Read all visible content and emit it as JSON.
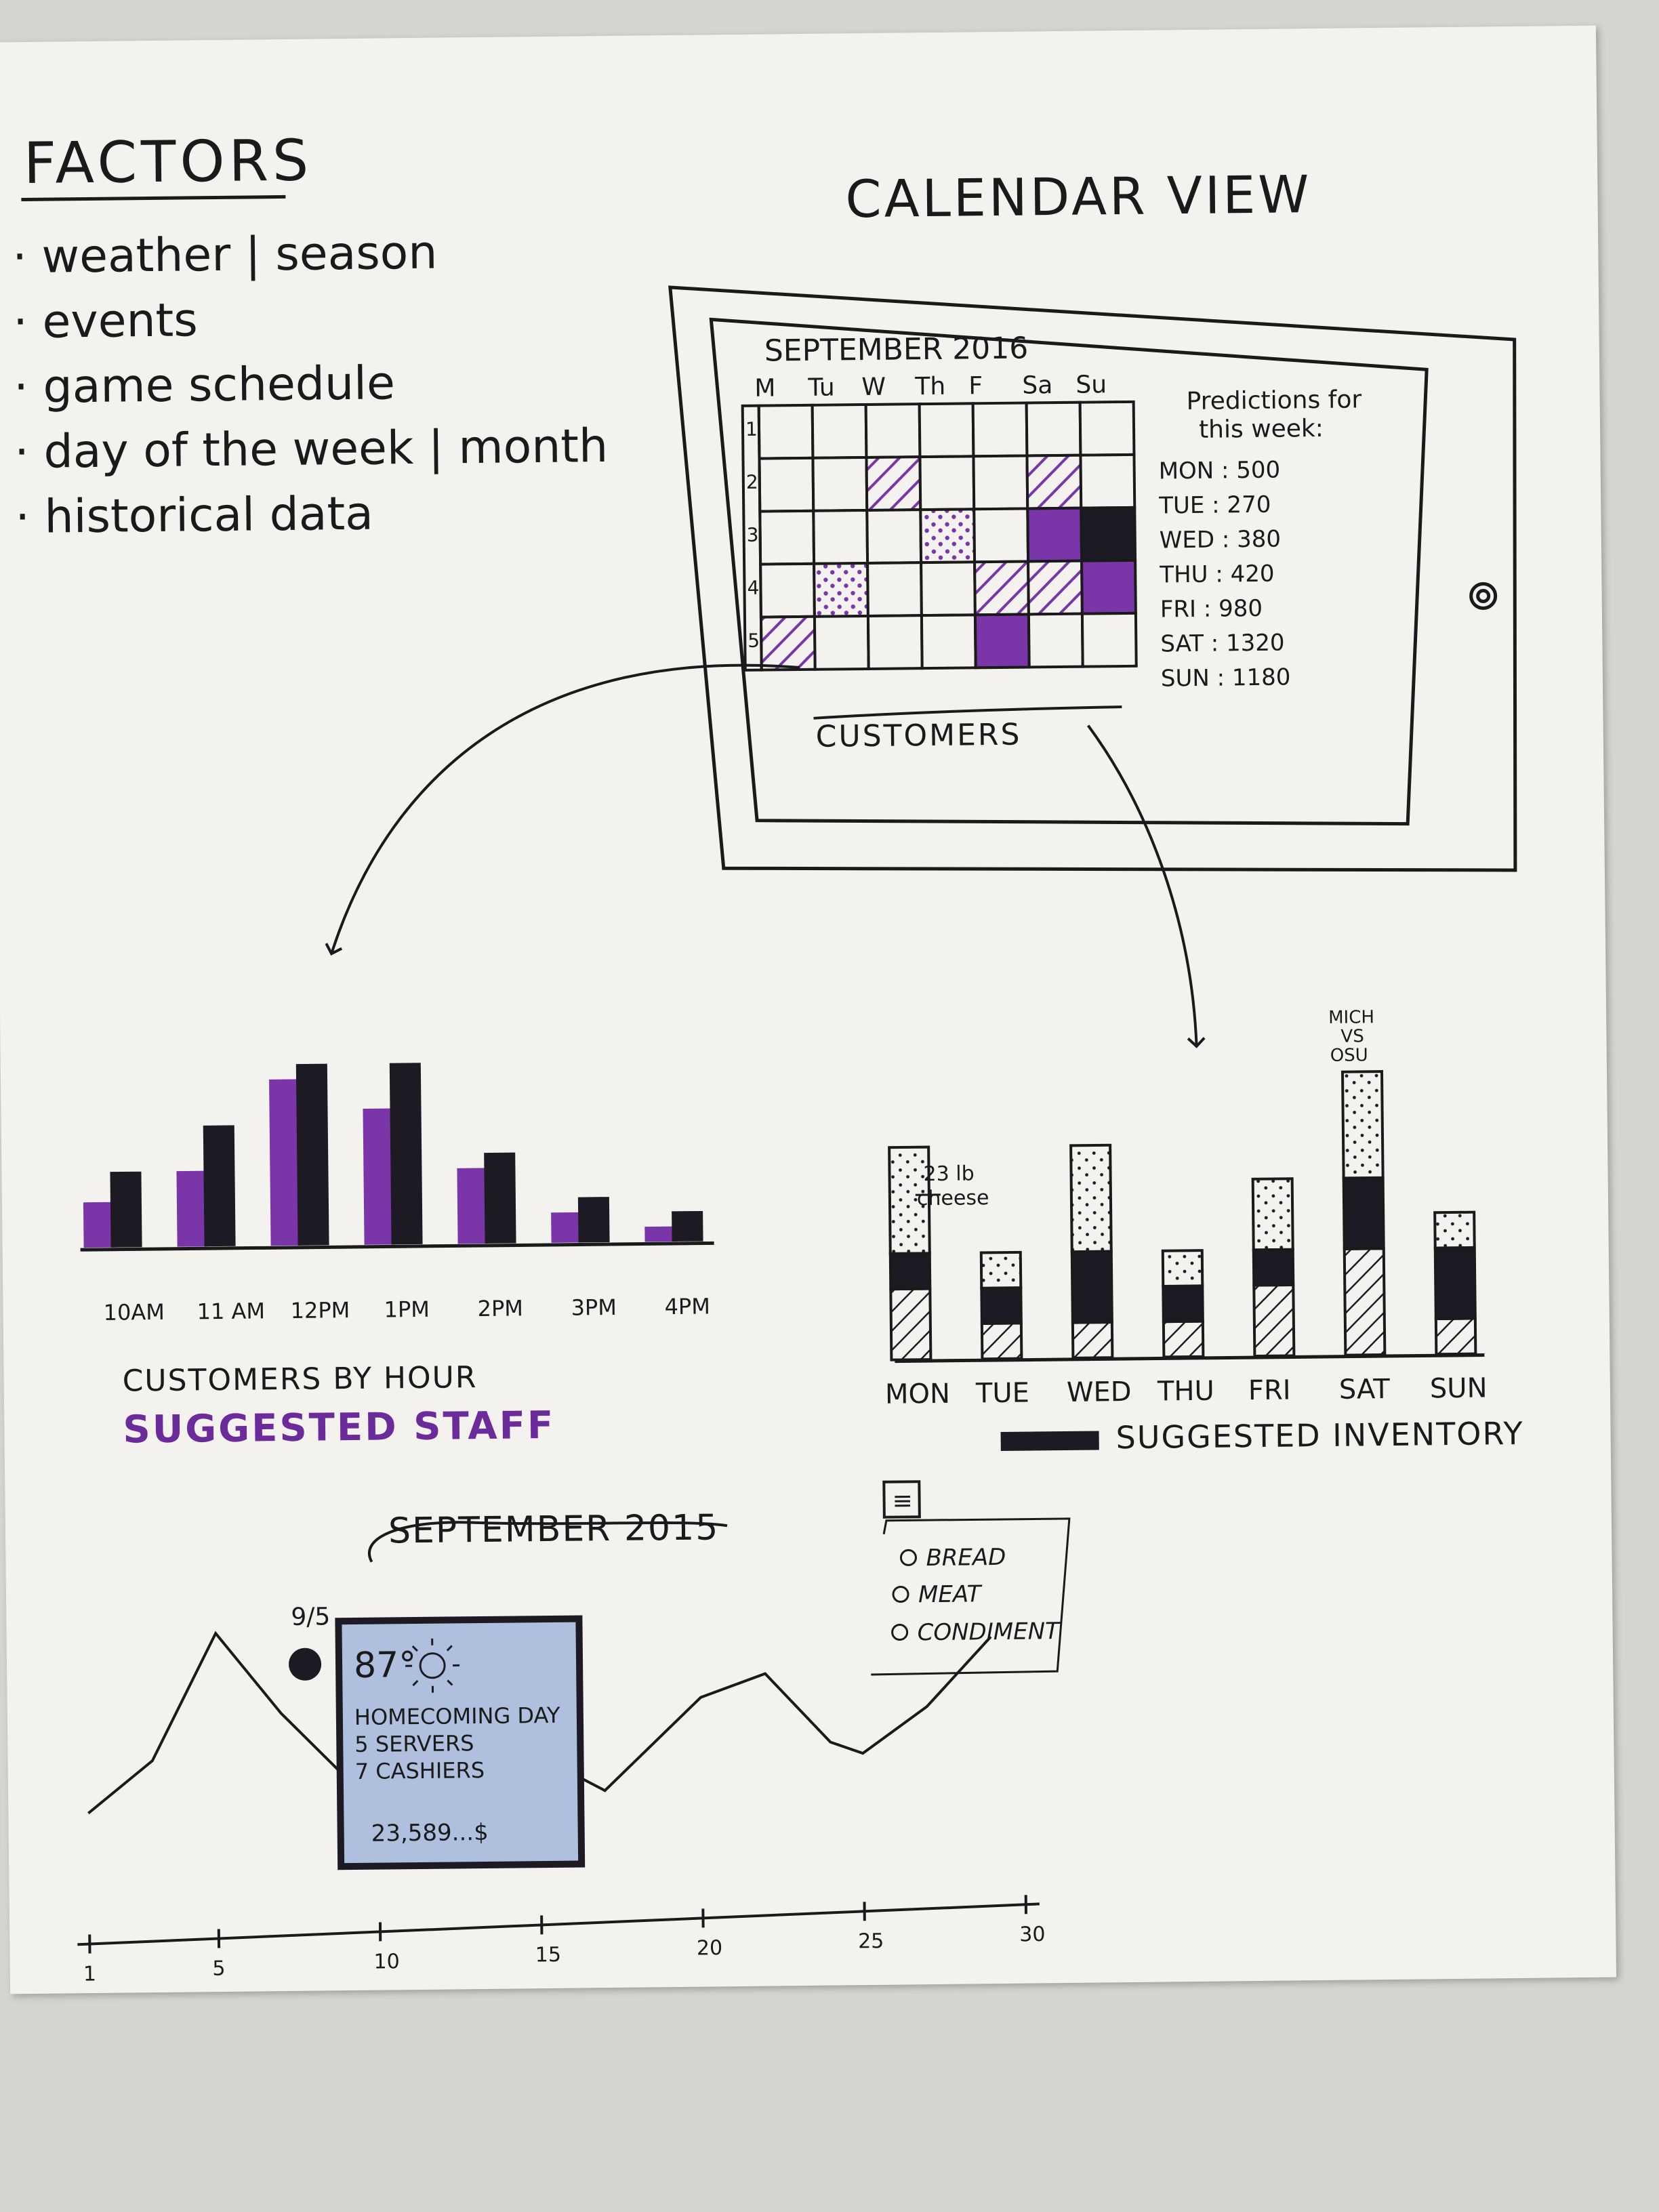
{
  "factors": {
    "title": "FACTORS",
    "items": [
      "weather | season",
      "events",
      "game schedule",
      "day of the week | month",
      "historical data"
    ]
  },
  "calendar": {
    "title": "CALENDAR VIEW",
    "month": "SEPTEMBER 2016",
    "days": [
      "M",
      "Tu",
      "W",
      "Th",
      "F",
      "Sa",
      "Su"
    ],
    "weeks": [
      "1",
      "2",
      "3",
      "4",
      "5"
    ],
    "footer": "CUSTOMERS",
    "predictions_title_1": "Predictions for",
    "predictions_title_2": "this week:",
    "predictions": [
      {
        "day": "MON",
        "value": "500"
      },
      {
        "day": "TUE",
        "value": "270"
      },
      {
        "day": "WED",
        "value": "380"
      },
      {
        "day": "THU",
        "value": "420"
      },
      {
        "day": "FRI",
        "value": "980"
      },
      {
        "day": "SAT",
        "value": "1320"
      },
      {
        "day": "SUN",
        "value": "1180"
      }
    ]
  },
  "staff": {
    "title": "CUSTOMERS BY HOUR",
    "subtitle": "SUGGESTED STAFF",
    "colors": {
      "purple": "#7a35a8",
      "black": "#1d1a24"
    }
  },
  "inventory": {
    "title": "SUGGESTED INVENTORY",
    "annotation_1": "23 lb",
    "annotation_2": "cheese",
    "game_1": "MICH",
    "game_2": "VS",
    "game_3": "OSU"
  },
  "timeline": {
    "title": "SEPTEMBER 2015",
    "marker_label": "9/5",
    "card": {
      "temp": "87°",
      "line1": "HOMECOMING DAY",
      "line2": "5 SERVERS",
      "line3": "7 CASHIERS",
      "money": "23,589...$"
    },
    "legend": {
      "menu_icon": "≡",
      "items": [
        "BREAD",
        "MEAT",
        "CONDIMENT"
      ]
    }
  },
  "chart_data": [
    {
      "type": "bar",
      "title": "CUSTOMERS BY HOUR",
      "subtitle": "SUGGESTED STAFF",
      "categories": [
        "10AM",
        "11 AM",
        "12PM",
        "1PM",
        "2PM",
        "3PM",
        "4PM"
      ],
      "series": [
        {
          "values": [
            3,
            5,
            11,
            9,
            5,
            2,
            1
          ]
        },
        {
          "values": [
            5,
            8,
            12,
            12,
            6,
            3,
            2
          ]
        }
      ],
      "ylim": [
        0,
        13
      ]
    },
    {
      "type": "bar",
      "title": "SUGGESTED INVENTORY",
      "categories": [
        "MON",
        "TUE",
        "WED",
        "THU",
        "FRI",
        "SAT",
        "SUN"
      ],
      "series": [
        {
          "name": "BREAD",
          "values": [
            3,
            1,
            3,
            1,
            2,
            3,
            1
          ]
        },
        {
          "name": "MEAT",
          "values": [
            1,
            1,
            2,
            1,
            1,
            2,
            2
          ]
        },
        {
          "name": "CONDIMENT",
          "values": [
            2,
            1,
            1,
            1,
            2,
            3,
            1
          ]
        }
      ],
      "ylim": [
        0,
        8
      ]
    },
    {
      "type": "line",
      "title": "SEPTEMBER 2015",
      "x": [
        1,
        3,
        5,
        7,
        10,
        13,
        15,
        17,
        20,
        22,
        24,
        25,
        27,
        29
      ],
      "y": [
        0.3,
        1.2,
        3.4,
        2.0,
        0.3,
        0.8,
        1.2,
        0.6,
        2.2,
        2.6,
        1.4,
        1.2,
        2.0,
        3.2
      ],
      "xticks": [
        "1",
        "5",
        "10",
        "15",
        "20",
        "25",
        "30"
      ],
      "xlim": [
        1,
        30
      ]
    }
  ]
}
